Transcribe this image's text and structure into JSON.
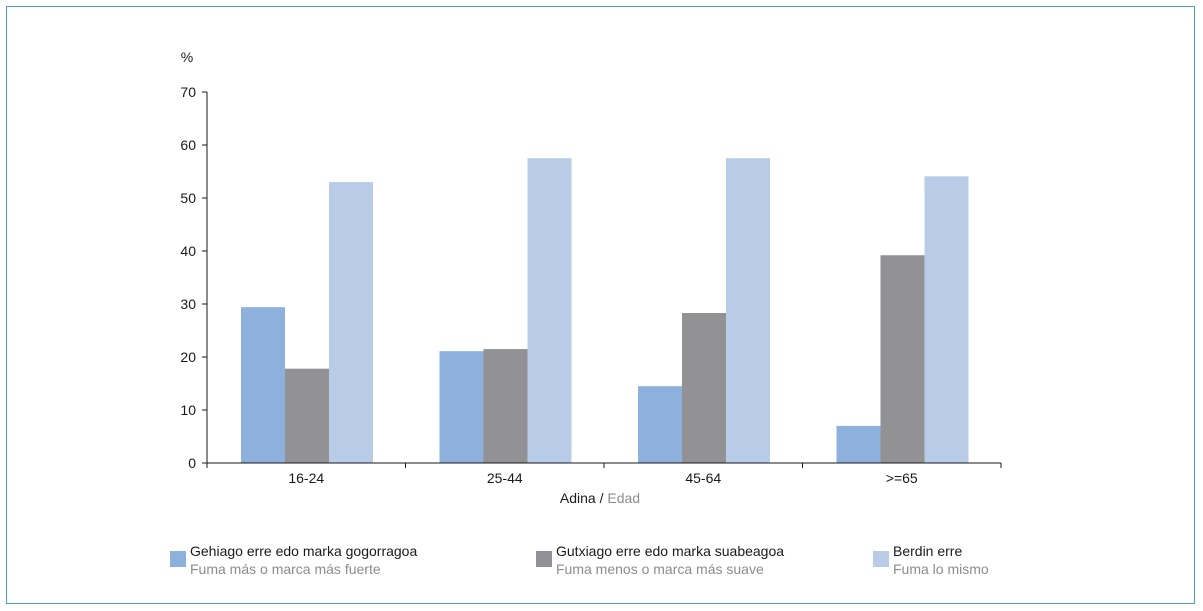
{
  "chart_data": {
    "type": "bar",
    "unit_label": "%",
    "xlabel_primary": "Adina",
    "xlabel_separator": " / ",
    "xlabel_secondary": "Edad",
    "categories": [
      "16-24",
      "25-44",
      "45-64",
      ">=65"
    ],
    "ylim": [
      0,
      70
    ],
    "yticks": [
      "0",
      "10",
      "20",
      "30",
      "40",
      "50",
      "60",
      "70"
    ],
    "grid": false,
    "legend_position": "bottom",
    "series": [
      {
        "name": "Gehiago erre edo marka gogorragoa",
        "name_secondary": "Fuma más o marca más fuerte",
        "color": "#8db0dc",
        "values": [
          29.4,
          21.1,
          14.5,
          7.0
        ]
      },
      {
        "name": "Gutxiago erre edo marka suabeagoa",
        "name_secondary": "Fuma menos o marca más suave",
        "color": "#929294",
        "values": [
          17.8,
          21.5,
          28.3,
          39.2
        ]
      },
      {
        "name": "Berdin erre",
        "name_secondary": "Fuma lo mismo",
        "color": "#b8cce8",
        "values": [
          53.0,
          57.5,
          57.5,
          54.1
        ]
      }
    ]
  }
}
